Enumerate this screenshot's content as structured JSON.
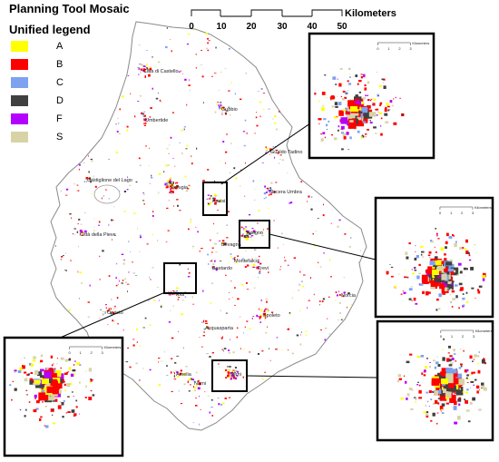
{
  "title": "Planning Tool Mosaic",
  "legend": {
    "title": "Unified legend",
    "items": [
      {
        "code": "A",
        "color": "#ffff00"
      },
      {
        "code": "B",
        "color": "#ff0000"
      },
      {
        "code": "C",
        "color": "#7da2f0"
      },
      {
        "code": "D",
        "color": "#404040"
      },
      {
        "code": "F",
        "color": "#b400ff"
      },
      {
        "code": "S",
        "color": "#d8d3a6"
      }
    ]
  },
  "scale_bar": {
    "unit": "Kilometers",
    "ticks": [
      "0",
      "10",
      "20",
      "30",
      "40",
      "50"
    ]
  },
  "towns": [
    "Città di Castello",
    "Umbertide",
    "Gubbio",
    "Gualdo Tadino",
    "Castiglione del Lago",
    "Perugia",
    "Assisi",
    "Nocera Umbra",
    "Città della Pieve",
    "Foligno",
    "Bevagna",
    "Montefalco",
    "Bastardo",
    "Trevi",
    "Todi",
    "Norcia",
    "Orvieto",
    "Spoleto",
    "Acquasparta",
    "Amelia",
    "Narni",
    "Terni"
  ],
  "insets": [
    {
      "scale_label": "Kilometers",
      "ticks": [
        "0",
        "1",
        "2",
        "3"
      ]
    },
    {
      "scale_label": "Kilometers",
      "ticks": [
        "0",
        "1",
        "2",
        "3"
      ]
    },
    {
      "scale_label": "Kilometers",
      "ticks": [
        "0",
        "1",
        "2",
        "3"
      ]
    },
    {
      "scale_label": "Kilometers",
      "ticks": [
        "0",
        "1",
        "2",
        "3"
      ]
    }
  ]
}
